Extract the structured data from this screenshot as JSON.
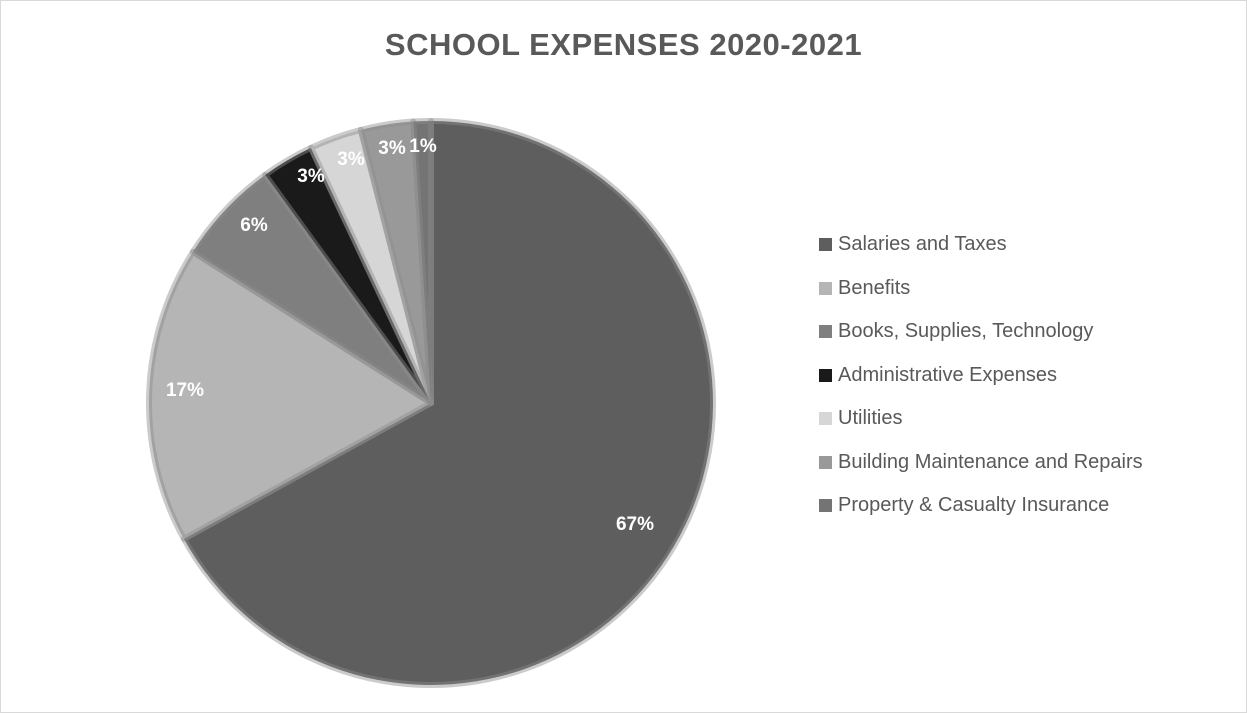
{
  "chart_data": {
    "type": "pie",
    "title": "SCHOOL EXPENSES 2020-2021",
    "categories": [
      "Salaries and Taxes",
      "Benefits",
      "Books, Supplies, Technology",
      "Administrative Expenses",
      "Utilities",
      "Building Maintenance and Repairs",
      "Property & Casualty Insurance"
    ],
    "values": [
      67,
      17,
      6,
      3,
      3,
      3,
      1
    ],
    "value_labels": [
      "67%",
      "17%",
      "6%",
      "3%",
      "3%",
      "3%",
      "1%"
    ],
    "colors": [
      "#5e5e5e",
      "#b5b5b5",
      "#7f7f7f",
      "#1a1a1a",
      "#d6d6d6",
      "#999999",
      "#747474"
    ],
    "legend_position": "right",
    "start_angle": "top, clockwise"
  }
}
